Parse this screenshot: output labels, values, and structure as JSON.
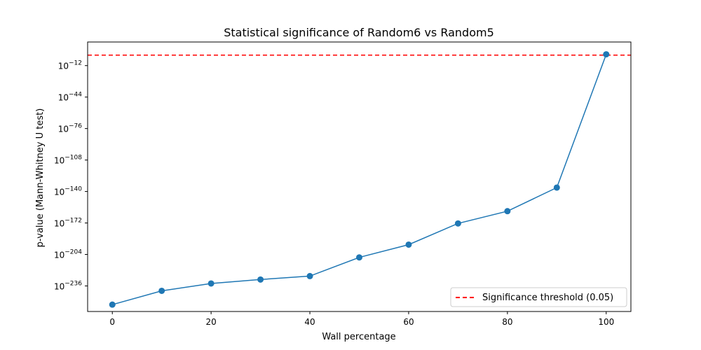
{
  "chart_data": {
    "type": "line",
    "title": "Statistical significance of Random6 vs Random5",
    "xlabel": "Wall percentage",
    "ylabel": "p-value (Mann-Whitney U test)",
    "yscale": "log",
    "x": [
      0,
      10,
      20,
      30,
      40,
      50,
      60,
      70,
      80,
      90,
      100
    ],
    "series": [
      {
        "name": "p-value",
        "color": "#1f77b4",
        "log10_values": [
          -255,
          -241,
          -233.5,
          -229.5,
          -226,
          -207,
          -194,
          -172.5,
          -160,
          -136,
          -0.5
        ]
      }
    ],
    "threshold": {
      "label": "Significance threshold (0.05)",
      "value": 0.05,
      "log10_value": -1.3,
      "color": "#ff0000"
    },
    "xlim": [
      -5,
      105
    ],
    "ylim_log10": [
      -262,
      12
    ],
    "xticks": [
      0,
      20,
      40,
      60,
      80,
      100
    ],
    "yticks": [
      {
        "base": "10",
        "exp": "−12",
        "log10": -12
      },
      {
        "base": "10",
        "exp": "−44",
        "log10": -44
      },
      {
        "base": "10",
        "exp": "−76",
        "log10": -76
      },
      {
        "base": "10",
        "exp": "−108",
        "log10": -108
      },
      {
        "base": "10",
        "exp": "−140",
        "log10": -140
      },
      {
        "base": "10",
        "exp": "−172",
        "log10": -172
      },
      {
        "base": "10",
        "exp": "−204",
        "log10": -204
      },
      {
        "base": "10",
        "exp": "−236",
        "log10": -236
      }
    ],
    "legend_position": "lower-right",
    "grid": false
  }
}
